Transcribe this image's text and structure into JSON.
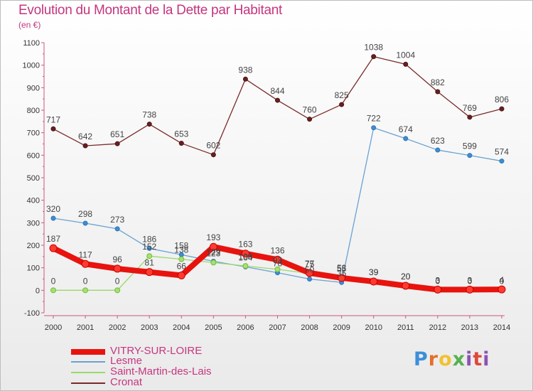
{
  "title": "Evolution du Montant de la Dette par Habitant",
  "unit": "(en €)",
  "logo": {
    "text": "Proxiti",
    "parts": [
      "P",
      "r",
      "o",
      "x",
      "i",
      "t",
      "i"
    ]
  },
  "chart_data": {
    "type": "line",
    "title": "Evolution du Montant de la Dette par Habitant",
    "ylabel": "(en €)",
    "xlabel": "",
    "categories": [
      "2000",
      "2001",
      "2002",
      "2003",
      "2004",
      "2005",
      "2006",
      "2007",
      "2008",
      "2009",
      "2010",
      "2011",
      "2012",
      "2013",
      "2014"
    ],
    "ylim": [
      -100,
      1100
    ],
    "yticks": [
      -100,
      0,
      100,
      200,
      300,
      400,
      500,
      600,
      700,
      800,
      900,
      1000,
      1100
    ],
    "grid": false,
    "legend_position": "bottom-left",
    "series": [
      {
        "name": "VITRY-SUR-LOIRE",
        "color": "#e8130e",
        "values": [
          187,
          117,
          96,
          81,
          66,
          193,
          163,
          136,
          77,
          55,
          39,
          20,
          3,
          3,
          4
        ]
      },
      {
        "name": "Lesme",
        "color": "#6aa2d2",
        "values": [
          320,
          298,
          273,
          186,
          158,
          129,
          104,
          78,
          50,
          35,
          722,
          674,
          623,
          599,
          574
        ]
      },
      {
        "name": "Saint-Martin-des-Lais",
        "color": "#9ad86a",
        "values": [
          0,
          0,
          0,
          152,
          138,
          123,
          108,
          93,
          75,
          58,
          39,
          20,
          0,
          0,
          0
        ]
      },
      {
        "name": "Cronat",
        "color": "#7a2a2a",
        "values": [
          717,
          642,
          651,
          738,
          653,
          602,
          938,
          844,
          760,
          825,
          1038,
          1004,
          882,
          769,
          806
        ]
      }
    ],
    "value_labels": [
      {
        "series": "VITRY-SUR-LOIRE",
        "labels": [
          "187",
          "117",
          "96",
          "81",
          "66",
          "193",
          "163",
          "136",
          "77",
          "55",
          "39",
          "20",
          "3",
          "3",
          "4"
        ]
      },
      {
        "series": "Lesme",
        "labels": [
          "320",
          "298",
          "273",
          "186",
          "158",
          "129",
          "104",
          "78",
          "50",
          "35",
          "722",
          "674",
          "623",
          "599",
          "574"
        ]
      },
      {
        "series": "Saint-Martin-des-Lais",
        "labels": [
          "0",
          "0",
          "0",
          "152",
          "138",
          "123",
          "108",
          "93",
          "75",
          "58",
          "39",
          "20",
          "0",
          "0",
          "0"
        ]
      },
      {
        "series": "Cronat",
        "labels": [
          "717",
          "642",
          "651",
          "738",
          "653",
          "602",
          "938",
          "844",
          "760",
          "825",
          "1038",
          "1004",
          "882",
          "769",
          "806"
        ]
      }
    ]
  }
}
